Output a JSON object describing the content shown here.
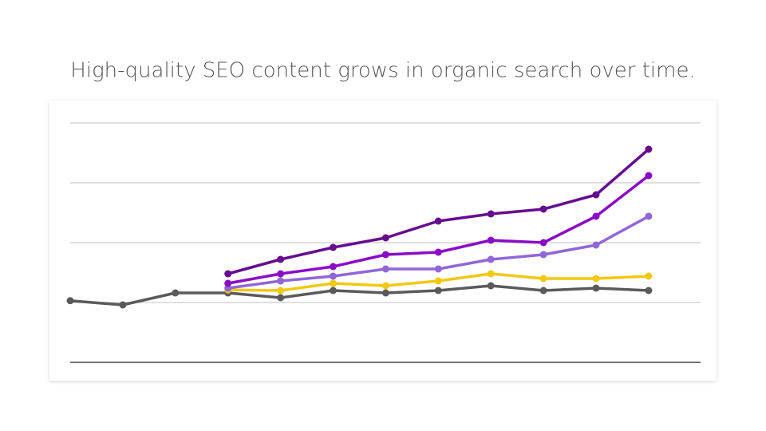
{
  "chart_data": {
    "type": "line",
    "title": "High-quality SEO content grows in organic search over time.",
    "categories": [
      null,
      null,
      null,
      null,
      null,
      null,
      null,
      null,
      null,
      null,
      null,
      null
    ],
    "ylim": [
      0,
      4
    ],
    "yticks": [
      0,
      1,
      2,
      3,
      4
    ],
    "grid": true,
    "series": [
      {
        "color": "#5a5a5a",
        "values": [
          1.03,
          0.96,
          1.16,
          1.16,
          1.08,
          1.2,
          1.16,
          1.2,
          1.28,
          1.2,
          1.24,
          1.2
        ]
      },
      {
        "color": "#f2c811",
        "values": [
          null,
          null,
          null,
          1.21,
          1.2,
          1.32,
          1.28,
          1.36,
          1.48,
          1.4,
          1.4,
          1.44
        ]
      },
      {
        "color": "#9166d8",
        "values": [
          null,
          null,
          null,
          1.24,
          1.36,
          1.44,
          1.56,
          1.56,
          1.72,
          1.8,
          1.96,
          2.44
        ]
      },
      {
        "color": "#8b0cc6",
        "values": [
          null,
          null,
          null,
          1.32,
          1.48,
          1.6,
          1.8,
          1.84,
          2.04,
          2.0,
          2.44,
          3.12
        ]
      },
      {
        "color": "#660c8f",
        "values": [
          null,
          null,
          null,
          1.48,
          1.72,
          1.92,
          2.08,
          2.36,
          2.48,
          2.56,
          2.8,
          3.56
        ]
      }
    ]
  }
}
